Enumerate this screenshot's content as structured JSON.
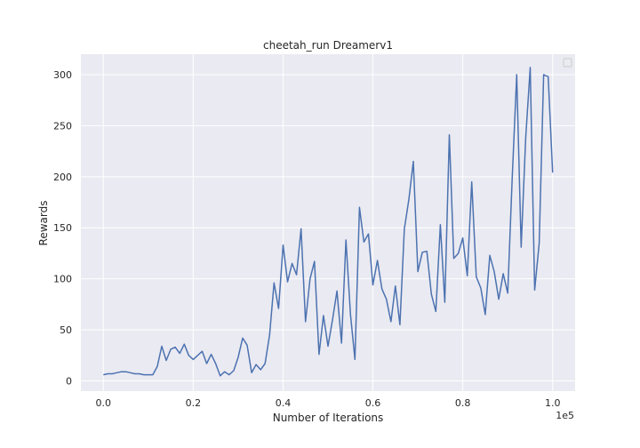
{
  "chart_data": {
    "type": "line",
    "title": "cheetah_run Dreamerv1",
    "xlabel": "Number of Iterations",
    "ylabel": "Rewards",
    "x_offset_label": "1e5",
    "xlim": [
      -0.05,
      1.05
    ],
    "ylim": [
      -10,
      320
    ],
    "x_ticks": [
      0.0,
      0.2,
      0.4,
      0.6,
      0.8,
      1.0
    ],
    "x_tick_labels": [
      "0.0",
      "0.2",
      "0.4",
      "0.6",
      "0.8",
      "1.0"
    ],
    "y_ticks": [
      0,
      50,
      100,
      150,
      200,
      250,
      300
    ],
    "y_tick_labels": [
      "0",
      "50",
      "100",
      "150",
      "200",
      "250",
      "300"
    ],
    "grid": true,
    "legend": "top-right",
    "colors": {
      "line": "#4c72b0",
      "plot_bg": "#eaeaf2",
      "grid": "#ffffff"
    },
    "series": [
      {
        "x": [
          0.0,
          0.01,
          0.02,
          0.03,
          0.04,
          0.05,
          0.06,
          0.07,
          0.08,
          0.09,
          0.1,
          0.11,
          0.12,
          0.13,
          0.14,
          0.15,
          0.16,
          0.17,
          0.18,
          0.19,
          0.2,
          0.21,
          0.22,
          0.23,
          0.24,
          0.25,
          0.26,
          0.27,
          0.28,
          0.29,
          0.3,
          0.31,
          0.32,
          0.33,
          0.34,
          0.35,
          0.36,
          0.37,
          0.38,
          0.39,
          0.4,
          0.41,
          0.42,
          0.43,
          0.44,
          0.45,
          0.46,
          0.47,
          0.48,
          0.49,
          0.5,
          0.51,
          0.52,
          0.53,
          0.54,
          0.55,
          0.56,
          0.57,
          0.58,
          0.59,
          0.6,
          0.61,
          0.62,
          0.63,
          0.64,
          0.65,
          0.66,
          0.67,
          0.68,
          0.69,
          0.7,
          0.71,
          0.72,
          0.73,
          0.74,
          0.75,
          0.76,
          0.77,
          0.78,
          0.79,
          0.8,
          0.81,
          0.82,
          0.83,
          0.84,
          0.85,
          0.86,
          0.87,
          0.88,
          0.89,
          0.9,
          0.91,
          0.92,
          0.93,
          0.94,
          0.95,
          0.96,
          0.97,
          0.98,
          0.99,
          1.0
        ],
        "values": [
          6,
          7,
          7,
          8,
          9,
          9,
          8,
          7,
          7,
          6,
          6,
          6,
          14,
          34,
          20,
          31,
          33,
          27,
          36,
          25,
          21,
          25,
          29,
          17,
          26,
          17,
          5,
          9,
          6,
          10,
          23,
          42,
          35,
          8,
          16,
          11,
          17,
          45,
          96,
          71,
          133,
          97,
          115,
          104,
          149,
          58,
          100,
          117,
          26,
          64,
          34,
          60,
          88,
          37,
          138,
          65,
          21,
          170,
          136,
          144,
          94,
          118,
          90,
          80,
          58,
          93,
          55,
          149,
          178,
          215,
          107,
          126,
          127,
          85,
          68,
          153,
          77,
          241,
          120,
          125,
          140,
          103,
          195,
          102,
          91,
          65,
          123,
          107,
          80,
          105,
          86,
          198,
          300,
          131,
          238,
          307,
          89,
          135,
          300,
          298,
          204
        ]
      }
    ]
  }
}
